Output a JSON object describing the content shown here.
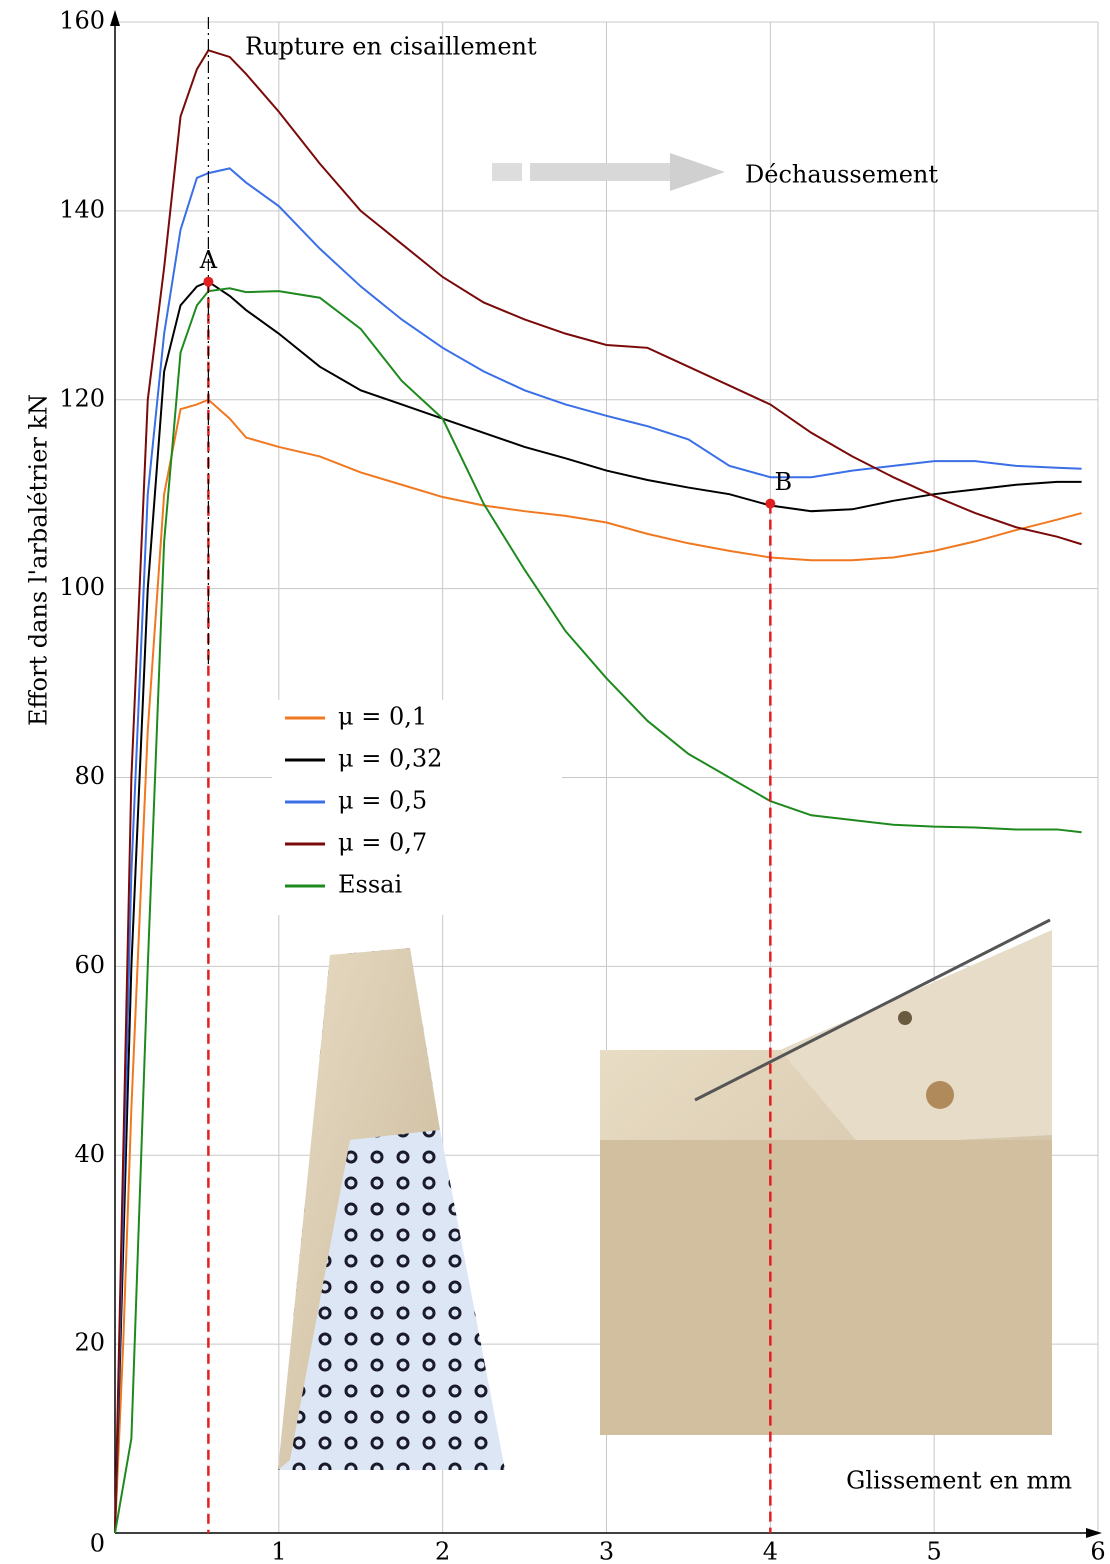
{
  "chart_data": {
    "type": "line",
    "x_label": "Glissement en mm",
    "y_label": "Effort dans l'arbalétrier kN",
    "x": [
      0,
      0.05,
      0.1,
      0.2,
      0.3,
      0.4,
      0.5,
      0.57,
      0.7,
      0.8,
      1,
      1.25,
      1.5,
      1.75,
      2,
      2.25,
      2.5,
      2.75,
      3,
      3.25,
      3.5,
      3.75,
      4,
      4.25,
      4.5,
      4.75,
      5,
      5.25,
      5.5,
      5.75,
      5.9
    ],
    "series": [
      {
        "name": "μ = 0,1",
        "color": "#f07820",
        "values": [
          0,
          20,
          45,
          85,
          110,
          119,
          119.5,
          120,
          118,
          116,
          115,
          114,
          112.3,
          111,
          109.7,
          108.8,
          108.2,
          107.7,
          107,
          105.8,
          104.8,
          104,
          103.3,
          103,
          103,
          103.3,
          104,
          105,
          106.2,
          107.3,
          108
        ]
      },
      {
        "name": "μ = 0,32",
        "color": "#000000",
        "values": [
          0,
          30,
          60,
          100,
          123,
          130,
          132,
          132.5,
          131,
          129.5,
          127,
          123.5,
          121,
          119.5,
          118,
          116.5,
          115,
          113.8,
          112.5,
          111.5,
          110.7,
          110,
          108.8,
          108.2,
          108.4,
          109.3,
          110,
          110.5,
          111,
          111.3,
          111.3
        ]
      },
      {
        "name": "μ = 0,5",
        "color": "#3a6fe8",
        "values": [
          0,
          35,
          70,
          110,
          127,
          138,
          143.5,
          144,
          144.5,
          143,
          140.5,
          136,
          132,
          128.5,
          125.5,
          123,
          121,
          119.5,
          118.3,
          117.2,
          115.8,
          113,
          111.8,
          111.8,
          112.5,
          113,
          113.5,
          113.5,
          113,
          112.8,
          112.7
        ]
      },
      {
        "name": "μ = 0,7",
        "color": "#7a0a0a",
        "values": [
          0,
          40,
          80,
          120,
          134,
          150,
          155,
          157,
          156.3,
          154.5,
          150.5,
          145,
          140,
          136.5,
          133,
          130.3,
          128.5,
          127,
          125.8,
          125.5,
          123.5,
          121.5,
          119.5,
          116.5,
          114,
          111.8,
          109.8,
          108,
          106.5,
          105.5,
          104.7
        ]
      },
      {
        "name": "Essai",
        "color": "#1e8a1e",
        "values": [
          0,
          5,
          10,
          60,
          105,
          125,
          130,
          131.5,
          131.8,
          131.4,
          131.5,
          130.8,
          127.5,
          122,
          118,
          109,
          102,
          95.5,
          90.5,
          86,
          82.5,
          80,
          77.5,
          76,
          75.5,
          75,
          74.8,
          74.7,
          74.5,
          74.5,
          74.2
        ]
      }
    ],
    "points": [
      {
        "label": "A",
        "x": 0.57,
        "y": 132.5
      },
      {
        "label": "B",
        "x": 4,
        "y": 109
      }
    ],
    "annotations": [
      "Rupture en cisaillement",
      "Déchaussement"
    ],
    "xlim": [
      0,
      6
    ],
    "xticks": [
      1,
      2,
      3,
      4,
      5,
      6
    ],
    "ylim": [
      0,
      160
    ],
    "yticks": [
      0,
      20,
      40,
      60,
      80,
      100,
      120,
      140,
      160
    ],
    "grid": true
  }
}
